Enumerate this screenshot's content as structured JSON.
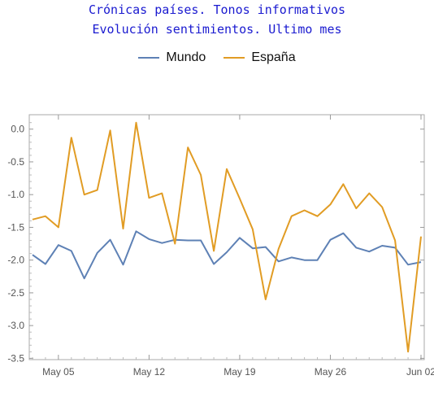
{
  "chart_data": {
    "type": "line",
    "title": "Crónicas países. Tonos informativos",
    "subtitle": "Evolución sentimientos. Ultimo mes",
    "legend_position": "top",
    "x_start": "May 03",
    "x_end": "Jun 02",
    "x": [
      "May 03",
      "May 04",
      "May 05",
      "May 06",
      "May 07",
      "May 08",
      "May 09",
      "May 10",
      "May 11",
      "May 12",
      "May 13",
      "May 14",
      "May 15",
      "May 16",
      "May 17",
      "May 18",
      "May 19",
      "May 20",
      "May 21",
      "May 22",
      "May 23",
      "May 24",
      "May 25",
      "May 26",
      "May 27",
      "May 28",
      "May 29",
      "May 30",
      "May 31",
      "Jun 01",
      "Jun 02"
    ],
    "xticks": [
      "May 05",
      "May 12",
      "May 19",
      "May 26",
      "Jun 02"
    ],
    "yticks": [
      0.0,
      -0.5,
      -1.0,
      -1.5,
      -2.0,
      -2.5,
      -3.0,
      -3.5
    ],
    "ytick_labels": [
      "0.0",
      "-0.5",
      "-1.0",
      "-1.5",
      "-2.0",
      "-2.5",
      "-3.0",
      "-3.5"
    ],
    "ylim": [
      -3.52,
      0.22
    ],
    "grid": false,
    "series": [
      {
        "name": "Mundo",
        "color": "#5e81b5",
        "values": [
          -1.92,
          -2.06,
          -1.77,
          -1.86,
          -2.28,
          -1.89,
          -1.69,
          -2.07,
          -1.56,
          -1.68,
          -1.74,
          -1.69,
          -1.7,
          -1.7,
          -2.06,
          -1.88,
          -1.66,
          -1.82,
          -1.8,
          -2.02,
          -1.96,
          -2.0,
          -2.0,
          -1.69,
          -1.59,
          -1.81,
          -1.87,
          -1.78,
          -1.81,
          -2.07,
          -2.03
        ]
      },
      {
        "name": "España",
        "color": "#e19c24",
        "values": [
          -1.38,
          -1.33,
          -1.5,
          -0.13,
          -1.0,
          -0.93,
          -0.02,
          -1.52,
          0.1,
          -1.05,
          -0.98,
          -1.75,
          -0.28,
          -0.7,
          -1.86,
          -0.61,
          -1.06,
          -1.53,
          -2.6,
          -1.83,
          -1.33,
          -1.24,
          -1.33,
          -1.15,
          -0.84,
          -1.21,
          -0.98,
          -1.19,
          -1.7,
          -3.4,
          -1.64
        ]
      }
    ]
  }
}
